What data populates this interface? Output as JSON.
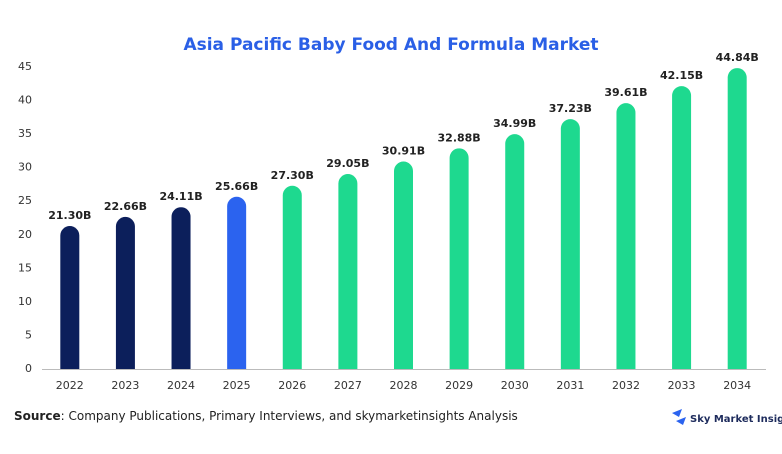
{
  "chart_data": {
    "type": "bar",
    "title": "Asia Pacific Baby Food And Formula Market",
    "categories": [
      "2022",
      "2023",
      "2024",
      "2025",
      "2026",
      "2027",
      "2028",
      "2029",
      "2030",
      "2031",
      "2032",
      "2033",
      "2034"
    ],
    "values": [
      21.3,
      22.66,
      24.11,
      25.66,
      27.3,
      29.05,
      30.91,
      32.88,
      34.99,
      37.23,
      39.61,
      42.15,
      44.84
    ],
    "value_labels": [
      "21.30B",
      "22.66B",
      "24.11B",
      "25.66B",
      "27.30B",
      "29.05B",
      "30.91B",
      "32.88B",
      "34.99B",
      "37.23B",
      "39.61B",
      "42.15B",
      "44.84B"
    ],
    "colors": [
      "#0c1f5b",
      "#0c1f5b",
      "#0c1f5b",
      "#2b63ef",
      "#1ed98f",
      "#1ed98f",
      "#1ed98f",
      "#1ed98f",
      "#1ed98f",
      "#1ed98f",
      "#1ed98f",
      "#1ed98f",
      "#1ed98f"
    ],
    "ylim": [
      0,
      45
    ],
    "yticks": [
      0,
      5,
      10,
      15,
      20,
      25,
      30,
      35,
      40,
      45
    ],
    "grid": false,
    "source_label": "Source",
    "source_text": ": Company Publications, Primary Interviews, and skymarketinsights Analysis",
    "logo": "Sky Market Insights"
  }
}
